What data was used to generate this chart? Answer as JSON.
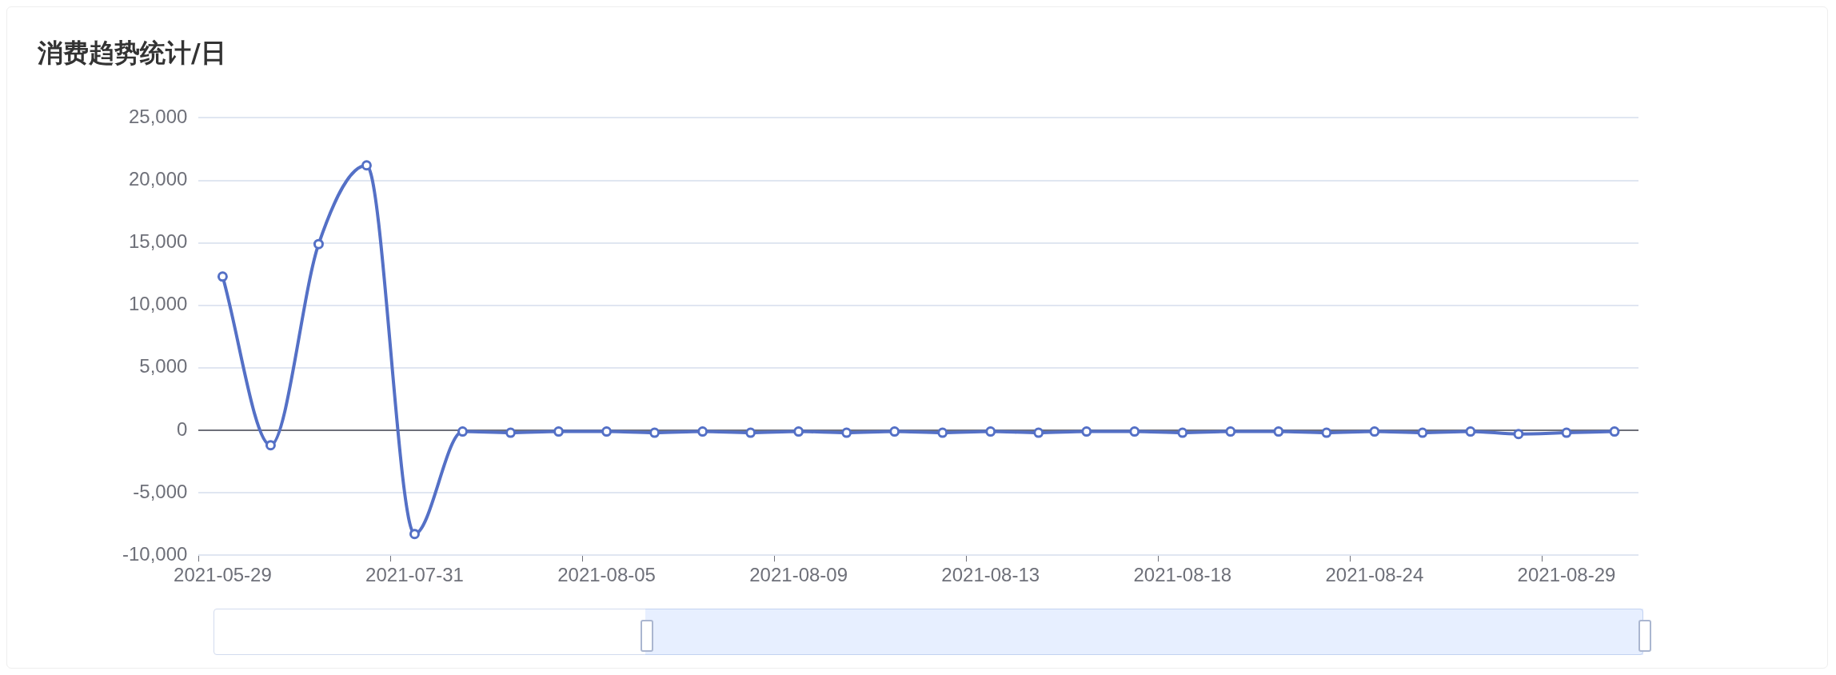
{
  "chart_data": {
    "type": "line",
    "title": "消费趋势统计/日",
    "categories": [
      "2021-05-29",
      null,
      null,
      null,
      "2021-07-31",
      null,
      null,
      null,
      "2021-08-05",
      null,
      null,
      null,
      "2021-08-09",
      null,
      null,
      null,
      "2021-08-13",
      null,
      null,
      null,
      "2021-08-18",
      null,
      null,
      null,
      "2021-08-24",
      null,
      null,
      null,
      "2021-08-29",
      null
    ],
    "series": [
      {
        "color": "#5470c6",
        "values": [
          12300,
          -1200,
          14900,
          21200,
          -8300,
          -100,
          -200,
          -100,
          -100,
          -200,
          -100,
          -200,
          -100,
          -200,
          -100,
          -200,
          -100,
          -200,
          -100,
          -100,
          -200,
          -100,
          -100,
          -200,
          -100,
          -200,
          -100,
          -300,
          -200,
          -100
        ]
      }
    ],
    "ylim": [
      -10000,
      25000
    ],
    "yticks": [
      {
        "value": -10000,
        "label": "-10,000"
      },
      {
        "value": -5000,
        "label": "-5,000"
      },
      0,
      {
        "value": 5000,
        "label": "5,000"
      },
      {
        "value": 10000,
        "label": "10,000"
      },
      {
        "value": 15000,
        "label": "15,000"
      },
      {
        "value": 20000,
        "label": "20,000"
      },
      {
        "value": 25000,
        "label": "25,000"
      }
    ],
    "grid": "y",
    "legend": false,
    "marker": "circle",
    "line_style": "solid"
  }
}
